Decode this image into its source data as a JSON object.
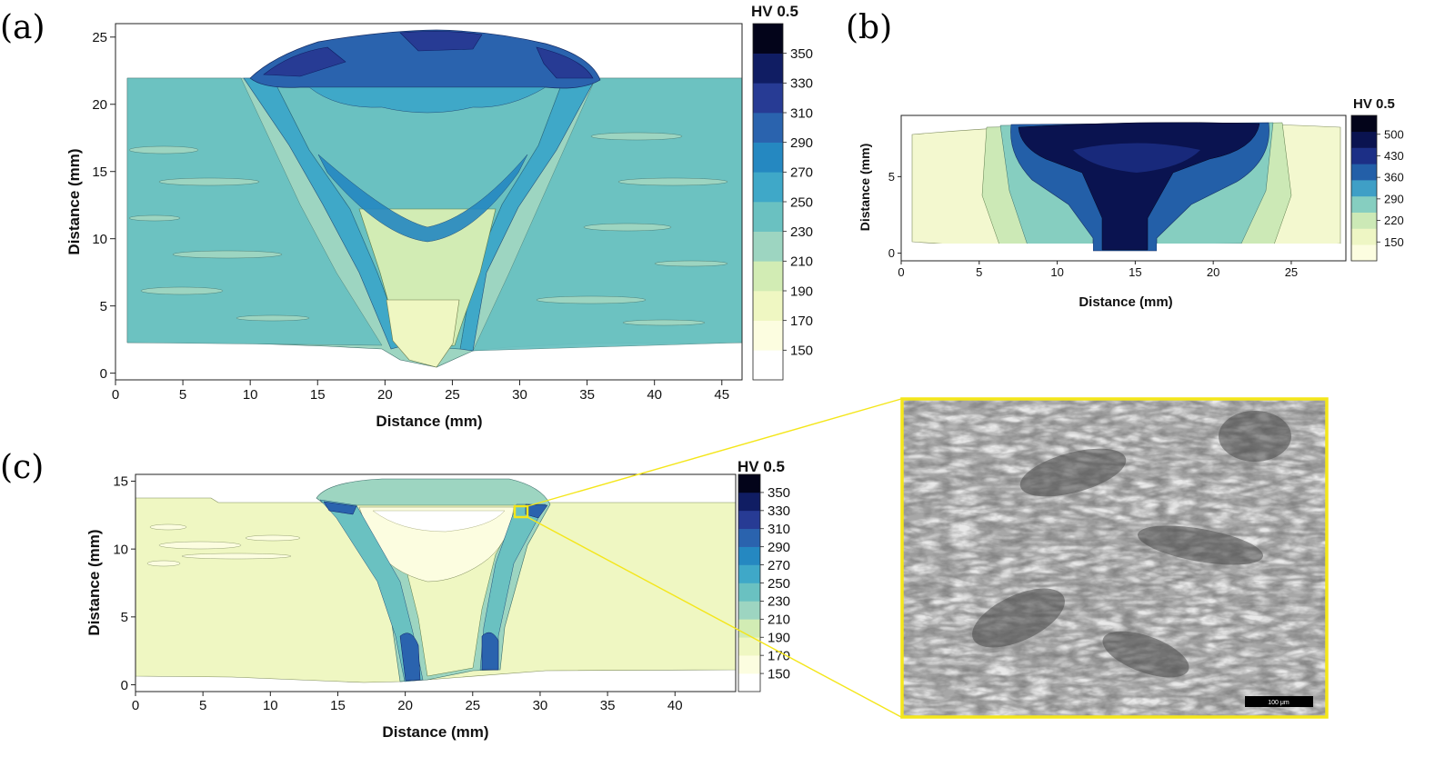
{
  "chart_data": [
    {
      "panel": "(a)",
      "type": "heatmap",
      "xlabel": "Distance (mm)",
      "ylabel": "Distance (mm)",
      "xlim": [
        0,
        46.5
      ],
      "ylim": [
        -0.5,
        26
      ],
      "x_ticks": [
        0,
        5,
        10,
        15,
        20,
        25,
        30,
        35,
        40,
        45
      ],
      "y_ticks": [
        0,
        5,
        10,
        15,
        20,
        25
      ],
      "colorbar": {
        "title": "HV 0.5",
        "levels": [
          150,
          170,
          190,
          210,
          230,
          250,
          270,
          290,
          310,
          330,
          350
        ],
        "colors": [
          "#ffffff",
          "#fcfde0",
          "#eff7c2",
          "#d2ecb4",
          "#9dd5c1",
          "#6ac1c1",
          "#3fa8c8",
          "#2588c1",
          "#2a63ae",
          "#273b94",
          "#101d63",
          "#03041a"
        ]
      },
      "regions": {
        "base_plate": {
          "x": [
            0.8,
            46.5
          ],
          "y": [
            2.2,
            22
          ],
          "hardness": 225
        },
        "weld_cap": {
          "x": [
            10.5,
            36
          ],
          "y_top": 25.3,
          "hardness": 320
        },
        "haz_bands_hardness": 260,
        "root_zone_hardness": 190
      }
    },
    {
      "panel": "(b)",
      "type": "heatmap",
      "xlabel": "Distance (mm)",
      "ylabel": "Distance (mm)",
      "xlim": [
        0,
        28.5
      ],
      "ylim": [
        -0.5,
        9
      ],
      "x_ticks": [
        0,
        5,
        10,
        15,
        20,
        25
      ],
      "y_ticks": [
        0,
        5
      ],
      "colorbar": {
        "title": "HV 0.5",
        "levels": [
          150,
          220,
          290,
          360,
          430,
          500
        ],
        "colors": [
          "#fcfde0",
          "#eef6c4",
          "#cce9b6",
          "#86cec0",
          "#3f9fc6",
          "#235fa8",
          "#1c2f86",
          "#0a1350",
          "#03041a"
        ]
      },
      "regions": {
        "base_plate_hardness": 200,
        "weld_zone": {
          "x": [
            7.5,
            23
          ],
          "hardness": 450
        },
        "root": {
          "x": [
            12.5,
            16.5
          ],
          "y": [
            0,
            2
          ]
        }
      }
    },
    {
      "panel": "(c)",
      "type": "heatmap",
      "xlabel": "Distance (mm)",
      "ylabel": "Distance (mm)",
      "xlim": [
        0,
        44.5
      ],
      "ylim": [
        -0.5,
        15.5
      ],
      "x_ticks": [
        0,
        5,
        10,
        15,
        20,
        25,
        30,
        35,
        40
      ],
      "y_ticks": [
        0,
        5,
        10,
        15
      ],
      "colorbar": {
        "title": "HV 0.5",
        "levels": [
          150,
          170,
          190,
          210,
          230,
          250,
          270,
          290,
          310,
          330,
          350
        ],
        "colors": [
          "#ffffff",
          "#fcfde0",
          "#eff7c2",
          "#d2ecb4",
          "#9dd5c1",
          "#6ac1c1",
          "#3fa8c8",
          "#2588c1",
          "#2a63ae",
          "#273b94",
          "#101d63",
          "#03041a"
        ]
      },
      "regions": {
        "base_plate_hardness": 185,
        "weld_center_hardness": 160,
        "fusion_line_hardness": 300,
        "inspection_box": {
          "x": 28.5,
          "y": 12.8
        }
      },
      "inset": {
        "kind": "micrograph",
        "scale_bar": "100 μm"
      }
    }
  ]
}
